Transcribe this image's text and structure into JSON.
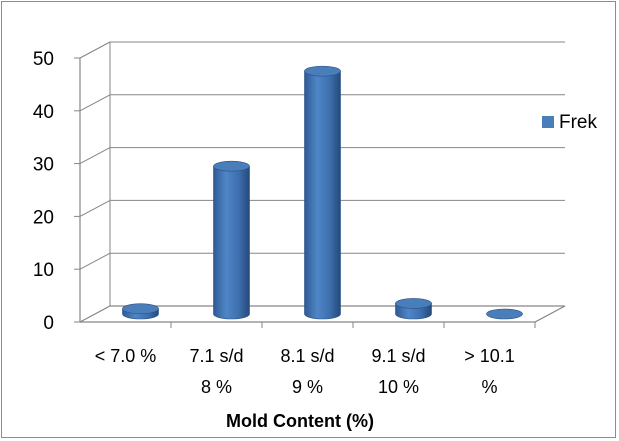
{
  "chart_data": {
    "type": "bar",
    "style": "3d-cylinder",
    "categories": [
      [
        "< 7.0 %"
      ],
      [
        "7.1 s/d",
        "8 %"
      ],
      [
        "8.1 s/d",
        "9 %"
      ],
      [
        "9.1 s/d",
        "10 %"
      ],
      [
        "> 10.1",
        "%"
      ]
    ],
    "series": [
      {
        "name": "Frek",
        "values": [
          1,
          28,
          46,
          2,
          0
        ],
        "color": "#4a7ebb"
      }
    ],
    "xlabel": "Mold Content (%)",
    "ylabel": "",
    "ylim": [
      0,
      50
    ],
    "yticks": [
      "0",
      "10",
      "20",
      "30",
      "40",
      "50"
    ],
    "grid": true,
    "legend": "right"
  }
}
